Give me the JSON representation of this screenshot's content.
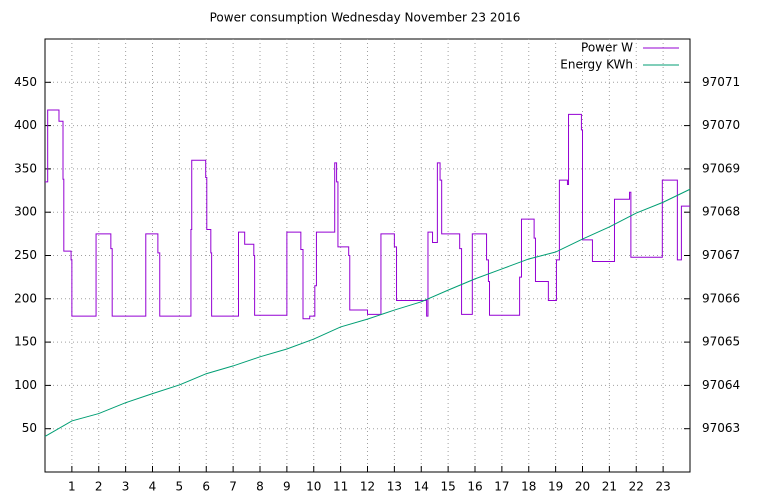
{
  "chart_data": {
    "type": "line",
    "title": "Power consumption Wednesday November 23 2016",
    "xlim": [
      0,
      24
    ],
    "xticks": [
      1,
      2,
      3,
      4,
      5,
      6,
      7,
      8,
      9,
      10,
      11,
      12,
      13,
      14,
      15,
      16,
      17,
      18,
      19,
      20,
      21,
      22,
      23
    ],
    "ylim": [
      0,
      500
    ],
    "yticks": [
      50,
      100,
      150,
      200,
      250,
      300,
      350,
      400,
      450
    ],
    "y2lim": [
      97062,
      97072
    ],
    "y2ticks": [
      97063,
      97064,
      97065,
      97066,
      97067,
      97068,
      97069,
      97070,
      97071
    ],
    "grid": true,
    "legend": "top-right",
    "series": [
      {
        "name": "Power W",
        "color": "#9400d3",
        "step": true,
        "x": [
          0,
          0.1,
          0.52,
          0.67,
          0.7,
          0.97,
          1.0,
          1.9,
          2.45,
          2.5,
          3.75,
          4.2,
          4.27,
          5.43,
          5.46,
          5.98,
          6.02,
          6.17,
          6.2,
          7.2,
          7.43,
          7.77,
          7.8,
          9.0,
          9.52,
          9.6,
          9.85,
          10.04,
          10.1,
          10.78,
          10.85,
          10.9,
          11.3,
          11.34,
          12.0,
          12.5,
          13.0,
          13.08,
          14.2,
          14.25,
          14.42,
          14.6,
          14.7,
          14.76,
          15.43,
          15.5,
          15.9,
          16.43,
          16.5,
          16.54,
          17.66,
          17.73,
          18.2,
          18.25,
          18.73,
          19.03,
          19.14,
          19.44,
          19.48,
          19.96,
          20.0,
          20.37,
          21.19,
          21.75,
          21.8,
          22.97,
          23.53,
          23.68
        ],
        "values": [
          335,
          418,
          405,
          338,
          255,
          245,
          180,
          275,
          258,
          180,
          275,
          253,
          180,
          280,
          360,
          340,
          280,
          253,
          180,
          277,
          263,
          250,
          181,
          277,
          257,
          177,
          180,
          215,
          277,
          357,
          335,
          260,
          250,
          187,
          182,
          275,
          260,
          198,
          180,
          277,
          265,
          357,
          337,
          275,
          258,
          182,
          275,
          245,
          220,
          181,
          225,
          292,
          270,
          220,
          198,
          245,
          337,
          332,
          413,
          395,
          268,
          243,
          315,
          323,
          248,
          337,
          245,
          307
        ]
      },
      {
        "name": "Energy KWh",
        "color": "#009e73",
        "axis": "y2",
        "x": [
          0,
          1,
          2,
          3,
          4,
          5,
          6,
          7,
          8,
          9,
          10,
          11,
          12,
          13,
          14,
          15,
          16,
          17,
          18,
          19,
          20,
          21,
          22,
          23,
          24
        ],
        "values": [
          97062.82,
          97063.18,
          97063.35,
          97063.6,
          97063.81,
          97064.01,
          97064.27,
          97064.45,
          97064.66,
          97064.84,
          97065.07,
          97065.35,
          97065.53,
          97065.74,
          97065.93,
          97066.2,
          97066.46,
          97066.69,
          97066.92,
          97067.08,
          97067.38,
          97067.66,
          97067.98,
          97068.23,
          97068.53
        ]
      }
    ]
  }
}
